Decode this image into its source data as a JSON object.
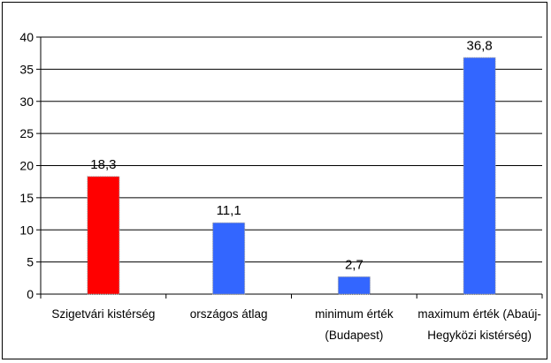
{
  "chart_data": {
    "type": "bar",
    "title": "",
    "xlabel": "",
    "ylabel": "",
    "ylim": [
      0,
      40
    ],
    "yticks": [
      "0",
      "5",
      "10",
      "15",
      "20",
      "25",
      "30",
      "35",
      "40"
    ],
    "grid": true,
    "legend": "none",
    "categories": [
      [
        "Szigetvári kistérség"
      ],
      [
        "országos átlag"
      ],
      [
        "minimum érték",
        "(Budapest)"
      ],
      [
        "maximum érték (Abaúj-",
        "Hegyközi kistérség)"
      ]
    ],
    "values": [
      18.3,
      11.1,
      2.7,
      36.8
    ],
    "data_labels": [
      "18,3",
      "11,1",
      "2,7",
      "36,8"
    ],
    "colors": [
      "#ff0000",
      "#3366ff",
      "#3366ff",
      "#3366ff"
    ]
  }
}
